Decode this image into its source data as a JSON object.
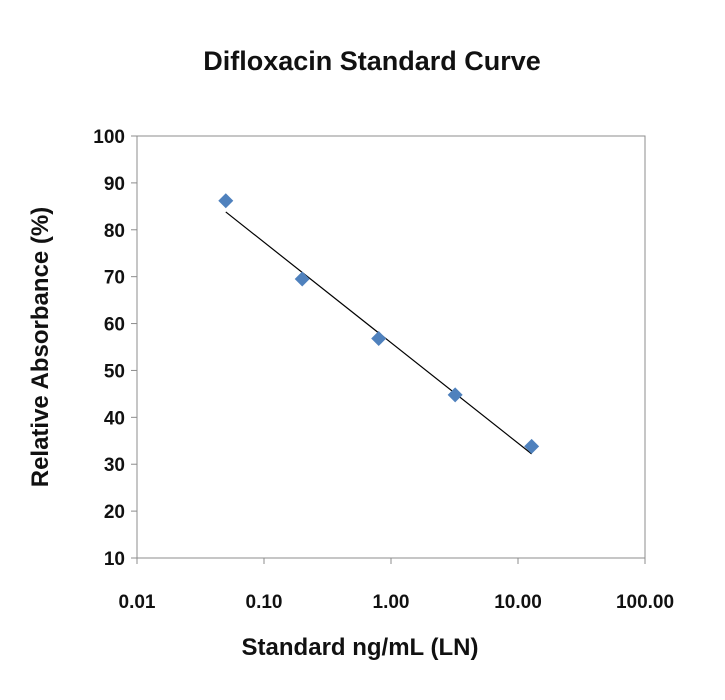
{
  "chart_data": {
    "type": "scatter",
    "title": "Difloxacin Standard Curve",
    "xlabel": "Standard ng/mL (LN)",
    "ylabel": "Relative Absorbance (%)",
    "x_scale": "log",
    "xlim": [
      0.01,
      100
    ],
    "ylim": [
      10,
      100
    ],
    "x_ticks": [
      0.01,
      0.1,
      1,
      10,
      100
    ],
    "x_tick_labels": [
      "0.01",
      "0.10",
      "1.00",
      "10.00",
      "100.00"
    ],
    "y_ticks": [
      10,
      20,
      30,
      40,
      50,
      60,
      70,
      80,
      90,
      100
    ],
    "y_tick_labels": [
      "10",
      "20",
      "30",
      "40",
      "50",
      "60",
      "70",
      "80",
      "90",
      "100"
    ],
    "grid": false,
    "legend": "none",
    "series": [
      {
        "marker": "diamond",
        "color": "#4f81bd",
        "points": [
          {
            "x": 0.05,
            "y": 86.2
          },
          {
            "x": 0.2,
            "y": 69.5
          },
          {
            "x": 0.8,
            "y": 56.8
          },
          {
            "x": 3.2,
            "y": 44.8
          },
          {
            "x": 12.8,
            "y": 33.8
          }
        ]
      }
    ],
    "trendline": {
      "type": "logarithmic",
      "color": "#000000",
      "points": [
        {
          "x": 0.05,
          "y": 83.8
        },
        {
          "x": 12.8,
          "y": 32.2
        }
      ]
    }
  }
}
